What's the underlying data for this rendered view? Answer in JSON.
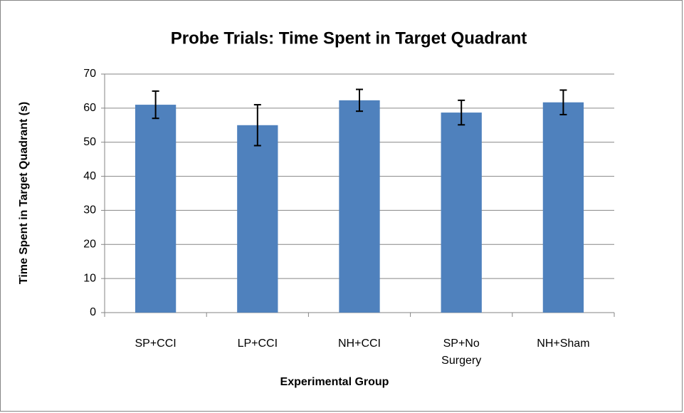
{
  "chart_data": {
    "type": "bar",
    "title": "Probe Trials: Time Spent in Target Quadrant",
    "x_label": "Experimental Group",
    "y_label": "Time Spent in Target Quadrant (s)",
    "categories": [
      "SP+CCI",
      "LP+CCI",
      "NH+CCI",
      "SP+No Surgery",
      "NH+Sham"
    ],
    "values": [
      61,
      55,
      62.3,
      58.7,
      61.7
    ],
    "errors": [
      4,
      6,
      3.2,
      3.6,
      3.6
    ],
    "color": "#4f81bd",
    "ylim": [
      0,
      70
    ],
    "yticks": [
      0,
      10,
      20,
      30,
      40,
      50,
      60,
      70
    ],
    "grid": true
  }
}
